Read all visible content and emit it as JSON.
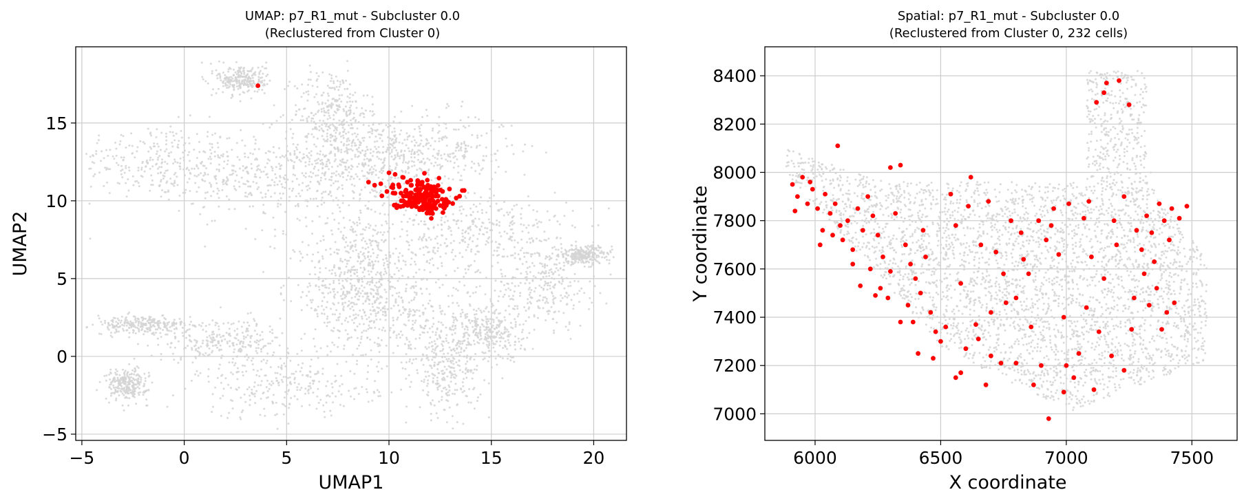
{
  "chart_data": [
    {
      "type": "scatter",
      "title_line1": "UMAP: p7_R1_mut - Subcluster 0.0",
      "title_line2": "(Reclustered from Cluster 0)",
      "xlabel": "UMAP1",
      "ylabel": "UMAP2",
      "xlim": [
        -5.3,
        21.6
      ],
      "ylim": [
        -5.4,
        19.9
      ],
      "xticks": [
        -5,
        0,
        5,
        10,
        15,
        20
      ],
      "yticks": [
        -5,
        0,
        5,
        10,
        15
      ],
      "xtick_labels": [
        "−5",
        "0",
        "5",
        "10",
        "15",
        "20"
      ],
      "ytick_labels": [
        "−5",
        "0",
        "5",
        "10",
        "15"
      ],
      "grid": true,
      "colors": {
        "background_cells": "#d3d3d3",
        "highlighted_cells": "#ff0000",
        "grid": "#cccccc"
      },
      "series": [
        {
          "role": "background",
          "color": "#d3d3d3",
          "regions": [
            {
              "cx": -1.5,
              "cy": 12.6,
              "sx": 2.0,
              "sy": 1.2
            },
            {
              "cx": 3.0,
              "cy": 11.5,
              "sx": 2.0,
              "sy": 1.2
            },
            {
              "cx": 7.0,
              "cy": 12.3,
              "sx": 1.5,
              "sy": 1.6
            },
            {
              "cx": 7.2,
              "cy": 15.8,
              "sx": 0.9,
              "sy": 1.4
            },
            {
              "cx": 9.5,
              "cy": 13.0,
              "sx": 1.5,
              "sy": 1.2
            },
            {
              "cx": 12.5,
              "cy": 13.2,
              "sx": 1.8,
              "sy": 1.2
            },
            {
              "cx": 10.0,
              "cy": 7.5,
              "sx": 3.0,
              "sy": 1.8
            },
            {
              "cx": 15.0,
              "cy": 8.0,
              "sx": 2.0,
              "sy": 1.3
            },
            {
              "cx": 17.5,
              "cy": 4.5,
              "sx": 1.2,
              "sy": 1.3
            },
            {
              "cx": 19.5,
              "cy": 6.5,
              "sx": 0.7,
              "sy": 0.3
            },
            {
              "cx": 8.0,
              "cy": 4.0,
              "sx": 1.5,
              "sy": 1.8
            },
            {
              "cx": 11.5,
              "cy": 2.0,
              "sx": 1.8,
              "sy": 1.3
            },
            {
              "cx": 12.8,
              "cy": -1.0,
              "sx": 0.8,
              "sy": 1.4
            },
            {
              "cx": 15.0,
              "cy": 1.5,
              "sx": 0.8,
              "sy": 0.9
            },
            {
              "cx": 5.0,
              "cy": -2.0,
              "sx": 2.2,
              "sy": 1.0
            },
            {
              "cx": -2.0,
              "cy": 2.0,
              "sx": 1.2,
              "sy": 0.3
            },
            {
              "cx": 2.0,
              "cy": 1.0,
              "sx": 1.6,
              "sy": 0.7
            },
            {
              "cx": -2.8,
              "cy": -1.8,
              "sx": 0.5,
              "sy": 0.5
            },
            {
              "cx": 2.8,
              "cy": 17.8,
              "sx": 0.6,
              "sy": 0.5
            },
            {
              "cx": 9.0,
              "cy": 5.0,
              "sx": 1.0,
              "sy": 2.0
            }
          ],
          "count": 5200
        },
        {
          "role": "highlighted",
          "color": "#ff0000",
          "points": [
            [
              3.6,
              17.4
            ],
            [
              9.0,
              11.2
            ],
            [
              9.3,
              11.0
            ],
            [
              9.6,
              11.1
            ],
            [
              9.9,
              10.6
            ],
            [
              10.2,
              10.5
            ],
            [
              10.0,
              11.8
            ],
            [
              10.3,
              11.7
            ],
            [
              10.5,
              10.9
            ],
            [
              10.7,
              11.5
            ],
            [
              10.9,
              11.2
            ],
            [
              11.1,
              11.0
            ],
            [
              11.3,
              10.7
            ],
            [
              11.5,
              10.4
            ],
            [
              11.8,
              10.2
            ],
            [
              12.0,
              10.0
            ],
            [
              12.2,
              9.8
            ],
            [
              12.5,
              9.7
            ],
            [
              12.8,
              9.7
            ],
            [
              11.0,
              10.2
            ],
            [
              11.2,
              9.9
            ],
            [
              11.6,
              9.6
            ],
            [
              11.9,
              9.4
            ],
            [
              12.3,
              9.5
            ],
            [
              10.8,
              10.6
            ],
            [
              11.4,
              11.3
            ],
            [
              11.7,
              10.9
            ],
            [
              12.1,
              10.6
            ],
            [
              12.4,
              10.3
            ],
            [
              10.6,
              10.0
            ],
            [
              11.9,
              11.0
            ],
            [
              11.3,
              10.1
            ],
            [
              12.6,
              10.1
            ],
            [
              10.9,
              9.7
            ],
            [
              11.6,
              11.1
            ],
            [
              12.0,
              9.2
            ],
            [
              11.1,
              10.5
            ],
            [
              11.8,
              9.8
            ],
            [
              10.7,
              10.3
            ],
            [
              12.2,
              10.9
            ]
          ],
          "cluster": {
            "cx": 11.6,
            "cy": 10.3,
            "sx": 0.7,
            "sy": 0.5,
            "count": 150
          }
        }
      ]
    },
    {
      "type": "scatter",
      "title_line1": "Spatial: p7_R1_mut - Subcluster 0.0",
      "title_line2": "(Reclustered from Cluster 0, 232 cells)",
      "xlabel": "X coordinate",
      "ylabel": "Y coordinate",
      "xlim": [
        5800,
        7680
      ],
      "ylim": [
        6890,
        8520
      ],
      "xticks": [
        6000,
        6500,
        7000,
        7500
      ],
      "yticks": [
        7000,
        7200,
        7400,
        7600,
        7800,
        8000,
        8200,
        8400
      ],
      "xtick_labels": [
        "6000",
        "6500",
        "7000",
        "7500"
      ],
      "ytick_labels": [
        "7000",
        "7200",
        "7400",
        "7600",
        "7800",
        "8000",
        "8200",
        "8400"
      ],
      "grid": true,
      "colors": {
        "background_cells": "#d3d3d3",
        "highlighted_cells": "#ff0000",
        "grid": "#cccccc"
      },
      "series": [
        {
          "role": "background",
          "color": "#d3d3d3",
          "count": 3800
        },
        {
          "role": "highlighted",
          "color": "#ff0000",
          "points": [
            [
              5910,
              7950
            ],
            [
              5930,
              7900
            ],
            [
              5950,
              7980
            ],
            [
              5970,
              7870
            ],
            [
              5990,
              7930
            ],
            [
              6010,
              7850
            ],
            [
              5920,
              7840
            ],
            [
              5980,
              7960
            ],
            [
              6040,
              7910
            ],
            [
              6060,
              7830
            ],
            [
              6080,
              7870
            ],
            [
              6100,
              7780
            ],
            [
              6030,
              7760
            ],
            [
              6070,
              7740
            ],
            [
              6110,
              7720
            ],
            [
              6130,
              7800
            ],
            [
              6150,
              7680
            ],
            [
              6170,
              7850
            ],
            [
              6190,
              7760
            ],
            [
              6090,
              8110
            ],
            [
              6210,
              7900
            ],
            [
              6230,
              7820
            ],
            [
              6250,
              7740
            ],
            [
              6270,
              7650
            ],
            [
              6220,
              7600
            ],
            [
              6260,
              7520
            ],
            [
              6290,
              7480
            ],
            [
              6240,
              7490
            ],
            [
              6300,
              8020
            ],
            [
              6320,
              7830
            ],
            [
              6340,
              8030
            ],
            [
              6360,
              7700
            ],
            [
              6380,
              7620
            ],
            [
              6400,
              7560
            ],
            [
              6420,
              7500
            ],
            [
              6370,
              7450
            ],
            [
              6390,
              7380
            ],
            [
              6410,
              7250
            ],
            [
              6440,
              7650
            ],
            [
              6460,
              7420
            ],
            [
              6480,
              7340
            ],
            [
              6500,
              7300
            ],
            [
              6520,
              7360
            ],
            [
              6540,
              7910
            ],
            [
              6560,
              7150
            ],
            [
              6580,
              7170
            ],
            [
              6600,
              7270
            ],
            [
              6610,
              7860
            ],
            [
              6620,
              7980
            ],
            [
              6640,
              7370
            ],
            [
              6660,
              7700
            ],
            [
              6680,
              7120
            ],
            [
              6700,
              7240
            ],
            [
              6720,
              7670
            ],
            [
              6740,
              7210
            ],
            [
              6760,
              7460
            ],
            [
              6780,
              7800
            ],
            [
              6800,
              7210
            ],
            [
              6820,
              7750
            ],
            [
              6830,
              7640
            ],
            [
              6850,
              7580
            ],
            [
              6870,
              7120
            ],
            [
              6890,
              7800
            ],
            [
              6900,
              7200
            ],
            [
              6920,
              7720
            ],
            [
              6930,
              6980
            ],
            [
              6950,
              7850
            ],
            [
              6970,
              7660
            ],
            [
              6990,
              7090
            ],
            [
              7000,
              7200
            ],
            [
              7010,
              7870
            ],
            [
              7030,
              7150
            ],
            [
              7050,
              7250
            ],
            [
              7070,
              7810
            ],
            [
              7090,
              7880
            ],
            [
              7110,
              7100
            ],
            [
              7120,
              8290
            ],
            [
              7130,
              7340
            ],
            [
              7150,
              8330
            ],
            [
              7160,
              8370
            ],
            [
              7180,
              7240
            ],
            [
              7190,
              7800
            ],
            [
              7210,
              8380
            ],
            [
              7230,
              7900
            ],
            [
              7250,
              8280
            ],
            [
              7260,
              7350
            ],
            [
              7270,
              7480
            ],
            [
              7280,
              7760
            ],
            [
              7300,
              7680
            ],
            [
              7310,
              7580
            ],
            [
              7320,
              7820
            ],
            [
              7330,
              7450
            ],
            [
              7340,
              7750
            ],
            [
              7350,
              7630
            ],
            [
              7360,
              7520
            ],
            [
              7370,
              7870
            ],
            [
              7390,
              7800
            ],
            [
              7400,
              7420
            ],
            [
              7410,
              7720
            ],
            [
              7420,
              7850
            ],
            [
              7430,
              7460
            ],
            [
              7450,
              7810
            ],
            [
              7480,
              7860
            ],
            [
              6690,
              7880
            ],
            [
              6750,
              7580
            ],
            [
              6990,
              7400
            ],
            [
              7080,
              7440
            ],
            [
              6860,
              7360
            ],
            [
              6560,
              7780
            ],
            [
              6300,
              7590
            ],
            [
              6180,
              7530
            ],
            [
              6020,
              7700
            ],
            [
              6150,
              7620
            ],
            [
              6470,
              7230
            ],
            [
              7230,
              7180
            ],
            [
              7100,
              7650
            ],
            [
              6940,
              7780
            ],
            [
              6580,
              7540
            ],
            [
              6800,
              7480
            ],
            [
              7150,
              7560
            ],
            [
              6650,
              7310
            ],
            [
              6340,
              7380
            ],
            [
              6430,
              7760
            ],
            [
              7380,
              7350
            ],
            [
              7200,
              7700
            ],
            [
              6700,
              7420
            ]
          ]
        }
      ]
    }
  ]
}
